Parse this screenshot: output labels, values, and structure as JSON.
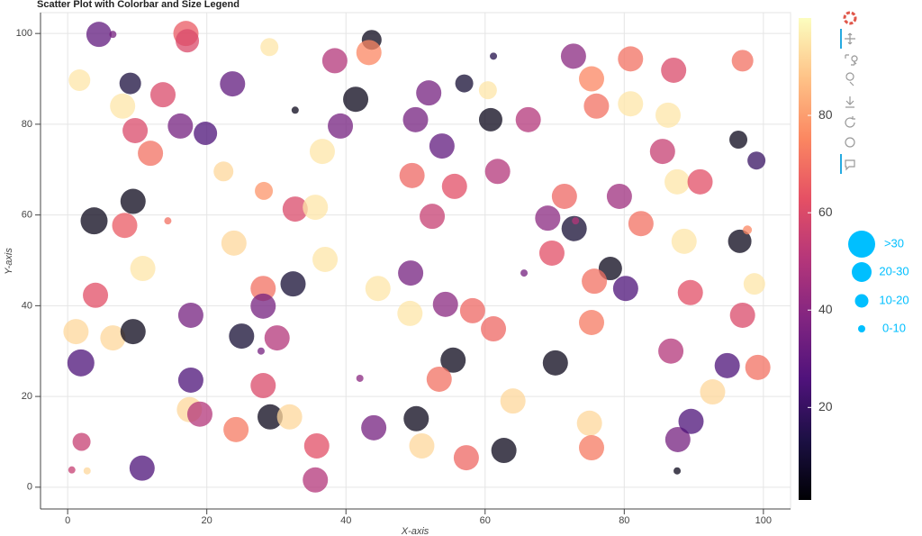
{
  "chart_data": {
    "type": "scatter",
    "title": "Scatter Plot with Colorbar and Size Legend",
    "x_label": "X-axis",
    "y_label": "Y-axis",
    "xlim": [
      -3.9,
      103.9
    ],
    "ylim": [
      -4.8,
      104.6
    ],
    "xticks": [
      0,
      20,
      40,
      60,
      80,
      100
    ],
    "yticks": [
      0,
      20,
      40,
      60,
      80,
      100
    ],
    "grid": true,
    "x": [
      4.5,
      17,
      17.2,
      43.7,
      29,
      1.7,
      9,
      23.7,
      38.4,
      43.3,
      41.4,
      51.9,
      57,
      60.4,
      72.7,
      75.3,
      80.9,
      87.1,
      97,
      7.9,
      9.7,
      11.9,
      16.2,
      19.8,
      13.7,
      36.6,
      39.2,
      50,
      53.8,
      60.8,
      66.2,
      76,
      80.9,
      86.3,
      85.5,
      96.4,
      99,
      3.8,
      9.4,
      8.2,
      23.9,
      22.4,
      28.2,
      32.7,
      35.6,
      37,
      49.5,
      52.4,
      55.6,
      61.8,
      71.4,
      69,
      72.8,
      79.3,
      82.4,
      87.6,
      90.9,
      88.6,
      96.6,
      98.7,
      49.3,
      69.6,
      78,
      80.2,
      32.4,
      4,
      10.8,
      28.1,
      44.6,
      54.3,
      58.2,
      75.7,
      89.5,
      97,
      1.2,
      6.5,
      9.4,
      17.7,
      25,
      28.1,
      30.1,
      49.2,
      61.2,
      75.3,
      86.7,
      1.9,
      17.7,
      28.1,
      55.4,
      70.1,
      99.2,
      94.8,
      92.7,
      64,
      17.5,
      19,
      29.1,
      31.9,
      50.1,
      44,
      53.4,
      75,
      87.7,
      89.6,
      24.2,
      10.7,
      62.7,
      35.6,
      57.3,
      50.9,
      75.3,
      35.8,
      2,
      6.5,
      32.7,
      61.2,
      0.6,
      2.8,
      87.6,
      73,
      27.8,
      97.7,
      65.6,
      42,
      14.4
    ],
    "y": [
      99.8,
      100,
      98.4,
      98.6,
      97,
      89.7,
      89,
      88.9,
      94,
      95.8,
      85.5,
      86.9,
      89,
      87.5,
      95,
      90,
      94.4,
      91.9,
      94,
      84,
      78.6,
      73.6,
      79.6,
      78,
      86.5,
      74,
      79.6,
      81,
      75.2,
      81,
      81,
      84,
      84.5,
      82,
      74,
      76.6,
      72,
      58.7,
      63,
      57.7,
      53.8,
      69.6,
      65.3,
      61.3,
      61.7,
      50.2,
      68.7,
      59.7,
      66.3,
      69.6,
      64.1,
      59.3,
      57,
      64.1,
      58.1,
      67.3,
      67.3,
      54.2,
      54.2,
      44.8,
      47.2,
      51.6,
      48.2,
      43.8,
      44.8,
      42.3,
      48.2,
      43.8,
      43.8,
      40.3,
      38.9,
      45.4,
      42.9,
      37.9,
      34.3,
      32.9,
      34.3,
      37.9,
      33.3,
      39.9,
      32.9,
      38.3,
      34.9,
      36.3,
      30,
      27.4,
      23.6,
      22.4,
      28,
      27.4,
      26.4,
      26.8,
      21,
      19,
      17.1,
      16.1,
      15.5,
      15.5,
      15.1,
      13.1,
      23.8,
      14.1,
      10.5,
      14.5,
      12.7,
      4.2,
      8.1,
      1.6,
      6.5,
      9.1,
      8.7,
      9.1,
      10,
      99.8,
      83.1,
      95,
      3.8,
      3.6,
      3.6,
      58.7,
      30,
      56.7,
      47.2,
      24,
      58.7
    ],
    "sizes": [
      28,
      28,
      26,
      22,
      20,
      24,
      24,
      28,
      28,
      28,
      28,
      28,
      20,
      20,
      28,
      28,
      28,
      28,
      24,
      28,
      28,
      28,
      28,
      26,
      28,
      28,
      28,
      28,
      28,
      26,
      28,
      28,
      28,
      28,
      28,
      20,
      20,
      30,
      28,
      28,
      28,
      22,
      20,
      28,
      28,
      28,
      28,
      28,
      28,
      28,
      28,
      28,
      28,
      28,
      28,
      28,
      28,
      28,
      26,
      24,
      28,
      28,
      26,
      28,
      28,
      28,
      28,
      28,
      28,
      28,
      28,
      28,
      28,
      28,
      28,
      28,
      28,
      28,
      28,
      28,
      28,
      28,
      28,
      28,
      28,
      30,
      28,
      28,
      28,
      28,
      28,
      28,
      28,
      28,
      28,
      28,
      28,
      28,
      28,
      28,
      28,
      28,
      28,
      28,
      28,
      28,
      28,
      28,
      28,
      28,
      28,
      28,
      20,
      8,
      8,
      8,
      8,
      8,
      8,
      8,
      8,
      10,
      8,
      8,
      8
    ],
    "color_values": [
      30,
      65,
      60,
      5,
      95,
      95,
      12,
      30,
      50,
      75,
      5,
      35,
      10,
      95,
      40,
      75,
      70,
      60,
      70,
      95,
      60,
      70,
      35,
      25,
      60,
      95,
      35,
      35,
      30,
      5,
      50,
      70,
      95,
      95,
      55,
      5,
      20,
      5,
      5,
      65,
      92,
      92,
      78,
      60,
      95,
      95,
      68,
      55,
      62,
      50,
      68,
      40,
      10,
      45,
      70,
      95,
      62,
      95,
      5,
      95,
      35,
      62,
      5,
      25,
      10,
      62,
      95,
      70,
      95,
      40,
      68,
      70,
      62,
      60,
      92,
      92,
      5,
      35,
      10,
      35,
      50,
      95,
      68,
      72,
      50,
      25,
      25,
      60,
      5,
      5,
      70,
      25,
      92,
      92,
      92,
      50,
      5,
      92,
      5,
      35,
      70,
      92,
      35,
      25,
      72,
      25,
      5,
      50,
      68,
      92,
      72,
      62,
      55,
      35,
      5,
      15,
      55,
      92,
      5,
      50,
      35,
      75,
      35,
      40,
      70
    ],
    "palette": [
      "#000004",
      "#1c1044",
      "#4f127b",
      "#812581",
      "#b5367a",
      "#e55064",
      "#fb8761",
      "#fec287",
      "#fcfdbf"
    ],
    "clim": [
      1,
      100
    ],
    "colorbar_ticks": [
      20,
      40,
      60,
      80
    ],
    "size_legend": {
      "labels": [
        ">30",
        "20-30",
        "10-20",
        "0-10"
      ],
      "sizes": [
        30,
        22,
        15,
        8
      ],
      "color": "#00bfff"
    }
  }
}
